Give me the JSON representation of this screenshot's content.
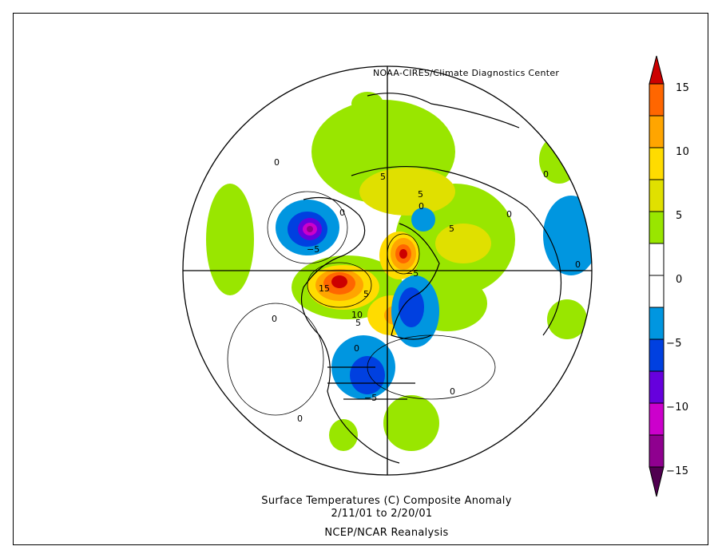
{
  "credit": "NOAA-CIRES/Climate Diagnostics Center",
  "title": {
    "line1": "Surface Temperatures (C)   Composite Anomaly",
    "line2": "2/11/01  to 2/20/01",
    "line3": "NCEP/NCAR Reanalysis"
  },
  "colorbar": {
    "labels": [
      "15",
      "10",
      "5",
      "0",
      "−5",
      "−10",
      "−15"
    ],
    "levels": [
      15,
      12.5,
      10,
      7.5,
      5,
      2.5,
      0,
      -2.5,
      -5,
      -7.5,
      -10,
      -12.5,
      -15
    ],
    "colors": {
      "above_15": "#cc0000",
      "12.5_15": "#ff6600",
      "10_12.5": "#ffa500",
      "7.5_10": "#ffdc00",
      "5_7.5": "#e0e000",
      "2.5_5": "#99e600",
      "0_2.5": "#ffffff",
      "-2.5_0": "#ffffff",
      "-5_-2.5": "#0096e0",
      "-7.5_-5": "#0040e0",
      "-10_-7.5": "#6600dd",
      "-12.5_-10": "#cc00cc",
      "-15_-12.5": "#8f008f",
      "below_-15": "#500050"
    }
  },
  "contour_labels": [
    "0",
    "5",
    "5",
    "0",
    "5",
    "0",
    "0",
    "−5",
    "−5",
    "15",
    "5",
    "10",
    "5",
    "0",
    "0",
    "−5",
    "0",
    "0",
    "0",
    "0"
  ]
}
